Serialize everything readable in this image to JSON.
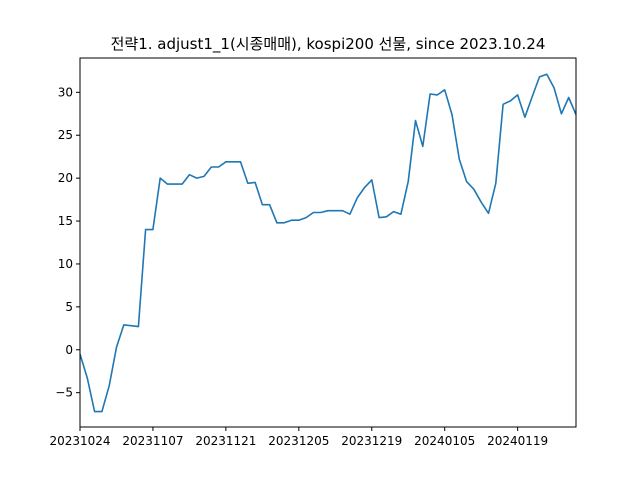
{
  "chart_data": {
    "type": "line",
    "title": "전략1. adjust1_1(시종매매), kospi200 선물, since 2023.10.24",
    "xlabel": "",
    "ylabel": "",
    "ylim": [
      -9,
      34
    ],
    "yticks": [
      -5,
      0,
      5,
      10,
      15,
      20,
      25,
      30
    ],
    "xticks": [
      "20231024",
      "20231107",
      "20231121",
      "20231205",
      "20231219",
      "20240105",
      "20240119"
    ],
    "grid": false,
    "series": [
      {
        "color": "#1f77b4",
        "values": [
          -0.5,
          -3.3,
          -7.2,
          -7.2,
          -4.2,
          0.3,
          2.9,
          2.8,
          2.7,
          14.0,
          14.0,
          20.0,
          19.3,
          19.3,
          19.3,
          20.4,
          20.0,
          20.2,
          21.3,
          21.3,
          21.9,
          21.9,
          21.9,
          19.4,
          19.5,
          16.9,
          16.9,
          14.8,
          14.8,
          15.1,
          15.1,
          15.4,
          16.0,
          16.0,
          16.2,
          16.2,
          16.2,
          15.8,
          17.7,
          18.9,
          19.8,
          15.4,
          15.5,
          16.1,
          15.8,
          19.6,
          26.7,
          23.7,
          29.8,
          29.7,
          30.3,
          27.4,
          22.2,
          19.6,
          18.7,
          17.2,
          15.9,
          19.4,
          28.6,
          29.0,
          29.7,
          27.1,
          29.5,
          31.8,
          32.1,
          30.5,
          27.5,
          29.4,
          27.4
        ]
      }
    ]
  }
}
